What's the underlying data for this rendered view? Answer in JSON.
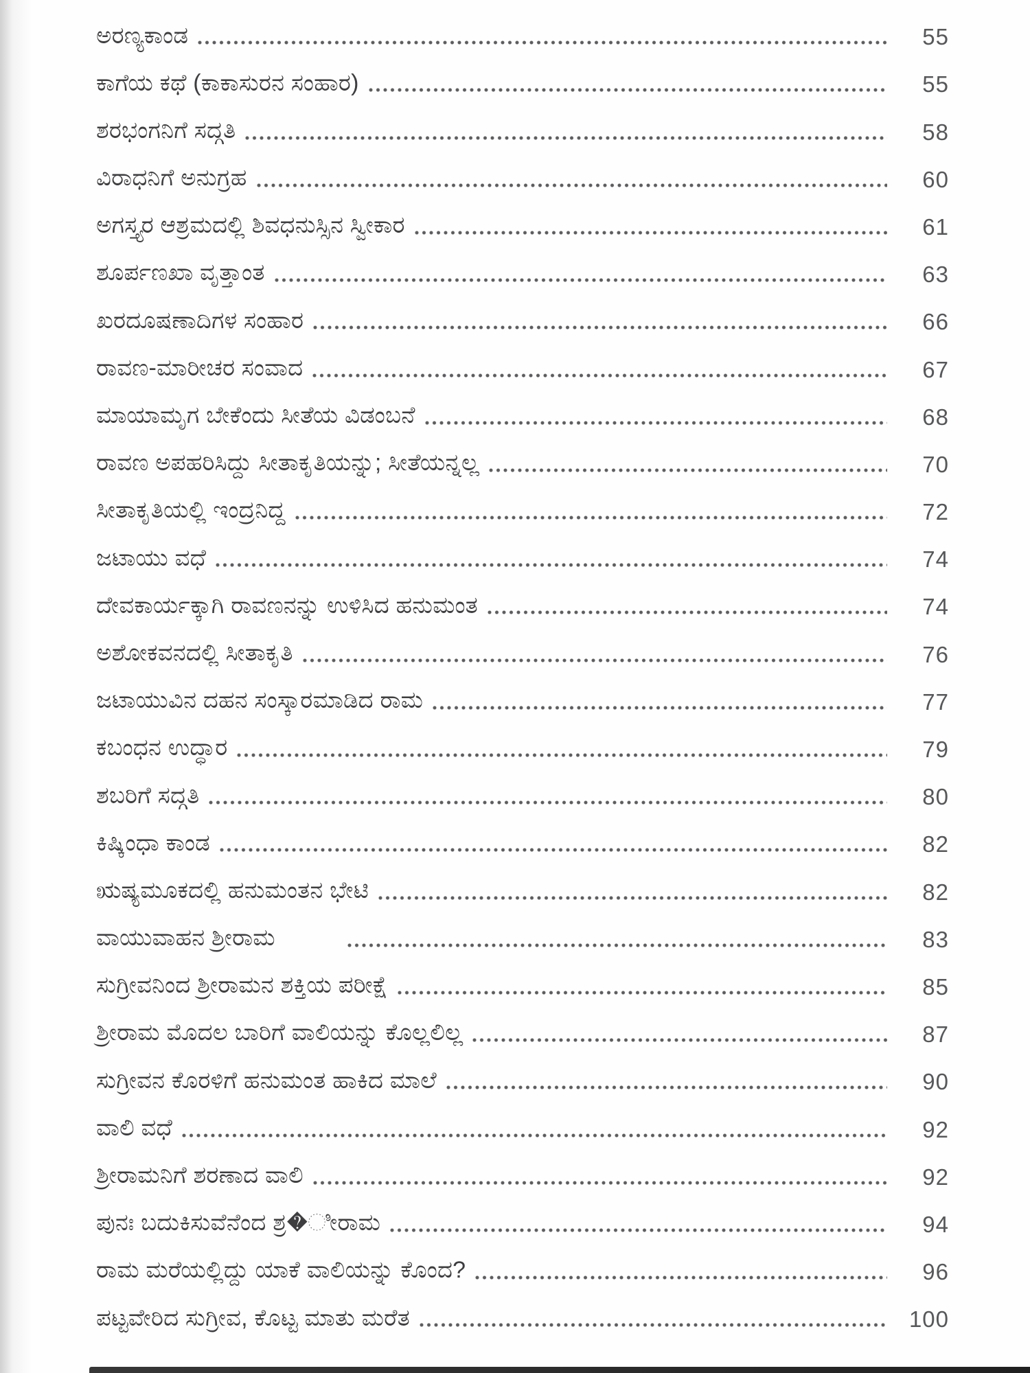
{
  "page": {
    "background": "#fefefe",
    "text_color": "#3e3e40",
    "dot_color": "#5d5d5f",
    "page_number_color": "#57585a"
  },
  "toc": {
    "entries": [
      {
        "title": "ಅರಣ್ಯಕಾಂಡ",
        "page": "55"
      },
      {
        "title": "ಕಾಗೆಯ ಕಥೆ (ಕಾಕಾಸುರನ ಸಂಹಾರ)",
        "page": "55"
      },
      {
        "title": "ಶರಭಂಗನಿಗೆ ಸದ್ಗತಿ",
        "page": "58"
      },
      {
        "title": "ವಿರಾಧನಿಗೆ ಅನುಗ್ರಹ",
        "page": "60"
      },
      {
        "title": "ಅಗಸ್ತ್ಯರ ಆಶ್ರಮದಲ್ಲಿ ಶಿವಧನುಸ್ಸಿನ ಸ್ವೀಕಾರ",
        "page": "61"
      },
      {
        "title": "ಶೂರ್ಪಣಖಾ ವೃತ್ತಾಂತ",
        "page": "63"
      },
      {
        "title": "ಖರದೂಷಣಾದಿಗಳ ಸಂಹಾರ",
        "page": "66"
      },
      {
        "title": "ರಾವಣ-ಮಾರೀಚರ ಸಂವಾದ",
        "page": "67"
      },
      {
        "title": "ಮಾಯಾಮೃಗ ಬೇಕೆಂದು ಸೀತೆಯ ವಿಡಂಬನೆ",
        "page": "68"
      },
      {
        "title": "ರಾವಣ ಅಪಹರಿಸಿದ್ದು ಸೀತಾಕೃತಿಯನ್ನು; ಸೀತೆಯನ್ನಲ್ಲ",
        "page": "70"
      },
      {
        "title": "ಸೀತಾಕೃತಿಯಲ್ಲಿ ಇಂದ್ರನಿದ್ದ",
        "page": "72"
      },
      {
        "title": "ಜಟಾಯು ವಧೆ",
        "page": "74"
      },
      {
        "title": "ದೇವಕಾರ್ಯಕ್ಕಾಗಿ ರಾವಣನನ್ನು ಉಳಿಸಿದ ಹನುಮಂತ",
        "page": "74"
      },
      {
        "title": "ಅಶೋಕವನದಲ್ಲಿ ಸೀತಾಕೃತಿ",
        "page": "76"
      },
      {
        "title": "ಜಟಾಯುವಿನ ದಹನ ಸಂಸ್ಕಾರಮಾಡಿದ ರಾಮ",
        "page": "77"
      },
      {
        "title": "ಕಬಂಧನ ಉದ್ಧಾರ",
        "page": "79"
      },
      {
        "title": "ಶಬರಿಗೆ ಸದ್ಗತಿ",
        "page": "80"
      },
      {
        "title": "ಕಿಷ್ಕಿಂಧಾ ಕಾಂಡ",
        "page": "82"
      },
      {
        "title": "ಋಷ್ಯಮೂಕದಲ್ಲಿ ಹನುಮಂತನ ಭೇಟಿ",
        "page": "82"
      },
      {
        "title": "ವಾಯುವಾಹನ ಶ್ರೀರಾಮ",
        "page": "83",
        "gap_before_leader": true
      },
      {
        "title": "ಸುಗ್ರೀವನಿಂದ ಶ್ರೀರಾಮನ ಶಕ್ತಿಯ ಪರೀಕ್ಷೆ",
        "page": "85"
      },
      {
        "title": "ಶ್ರೀರಾಮ ಮೊದಲ ಬಾರಿಗೆ ವಾಲಿಯನ್ನು ಕೊಲ್ಲಲಿಲ್ಲ",
        "page": "87"
      },
      {
        "title": "ಸುಗ್ರೀವನ ಕೊರಳಿಗೆ ಹನುಮಂತ ಹಾಕಿದ ಮಾಲೆ",
        "page": "90"
      },
      {
        "title": "ವಾಲಿ ವಧೆ",
        "page": "92"
      },
      {
        "title": "ಶ್ರೀರಾಮನಿಗೆ ಶರಣಾದ ವಾಲಿ",
        "page": "92"
      },
      {
        "title": "ಪುನಃ ಬದುಕಿಸುವೆನೆಂದ ಶ್ರ�ೀರಾಮ",
        "page": "94"
      },
      {
        "title": "ರಾಮ ಮರೆಯಲ್ಲಿದ್ದು ಯಾಕೆ ವಾಲಿಯನ್ನು ಕೊಂದ?",
        "page": "96"
      },
      {
        "title": "ಪಟ್ಟವೇರಿದ ಸುಗ್ರೀವ, ಕೊಟ್ಟ ಮಾತು ಮರೆತ",
        "page": "100"
      }
    ]
  }
}
